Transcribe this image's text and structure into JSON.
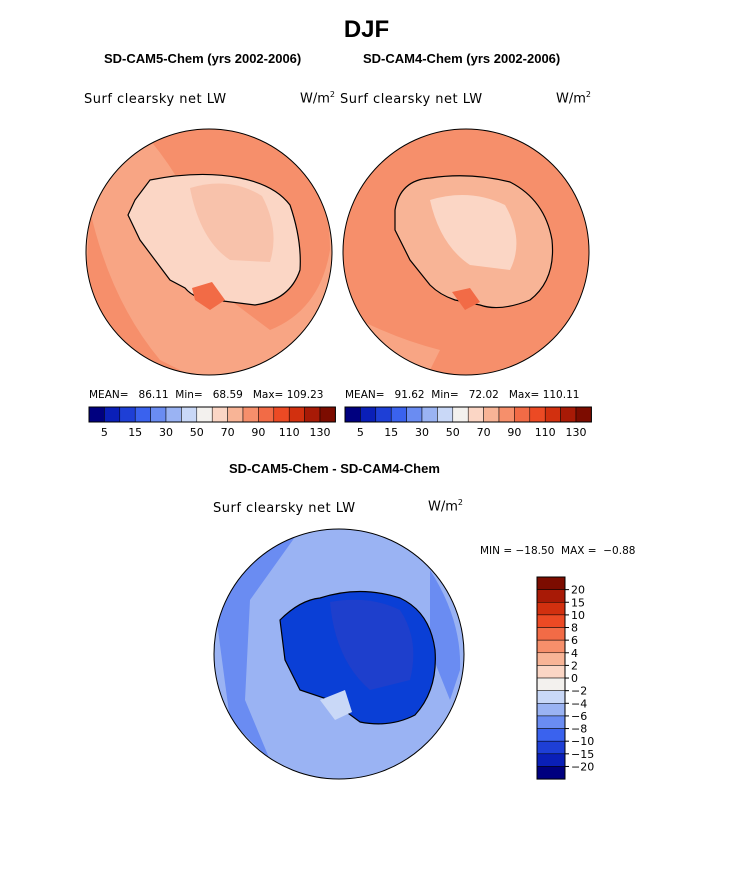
{
  "title": "DJF",
  "panels": [
    {
      "title": "SD-CAM5-Chem (yrs 2002-2006)",
      "field": "Surf clearsky net LW",
      "units_base": "W/m",
      "units_sup": "2",
      "mean_label": "MEAN=",
      "mean": "86.11",
      "min_label": "Min=",
      "min": "68.59",
      "max_label": "Max=",
      "max": "109.23"
    },
    {
      "title": "SD-CAM4-Chem (yrs 2002-2006)",
      "field": "Surf clearsky net LW",
      "units_base": "W/m",
      "units_sup": "2",
      "mean_label": "MEAN=",
      "mean": "91.62",
      "min_label": "Min=",
      "min": "72.02",
      "max_label": "Max=",
      "max": "110.11"
    }
  ],
  "abs_colorbar": {
    "colors": [
      "#00007f",
      "#0a1fb8",
      "#1e3fd6",
      "#3a62ee",
      "#6a8cf2",
      "#9ab3f3",
      "#c9d8f7",
      "#f3f1ee",
      "#fbd6c5",
      "#f8b496",
      "#f68f6b",
      "#f26b46",
      "#ec4a24",
      "#d2300f",
      "#a81a06",
      "#7c0c00"
    ],
    "tick_labels": [
      "5",
      "15",
      "30",
      "50",
      "70",
      "90",
      "110",
      "130"
    ]
  },
  "diff_panel": {
    "title": "SD-CAM5-Chem - SD-CAM4-Chem",
    "field": "Surf clearsky net LW",
    "units_base": "W/m",
    "units_sup": "2",
    "stats": "MIN = −18.50  MAX =  −0.88"
  },
  "diff_colorbar": {
    "colors": [
      "#00007f",
      "#0a1fb8",
      "#1e3fd6",
      "#3a62ee",
      "#6a8cf2",
      "#9ab3f3",
      "#c9d8f7",
      "#f3f1ee",
      "#fbd6c5",
      "#f8b496",
      "#f68f6b",
      "#f26b46",
      "#ec4a24",
      "#d2300f",
      "#a81a06",
      "#7c0c00"
    ],
    "tick_labels": [
      "20",
      "15",
      "10",
      "8",
      "6",
      "4",
      "2",
      "0",
      "−2",
      "−4",
      "−6",
      "−8",
      "−10",
      "−15",
      "−20"
    ]
  },
  "map_colors": {
    "ocean_warm": "#f68f6b",
    "ocean_warm2": "#f8a584",
    "ice_pale": "#fbd6c5",
    "ice_mid": "#f8c2ab",
    "hot_spot": "#f26b46",
    "diff_outer": "#6a8cf2",
    "diff_mid": "#9ab3f3",
    "diff_pale": "#c9d8f7",
    "diff_core": "#0a3fd6",
    "diff_deep": "#1e3fcc"
  }
}
